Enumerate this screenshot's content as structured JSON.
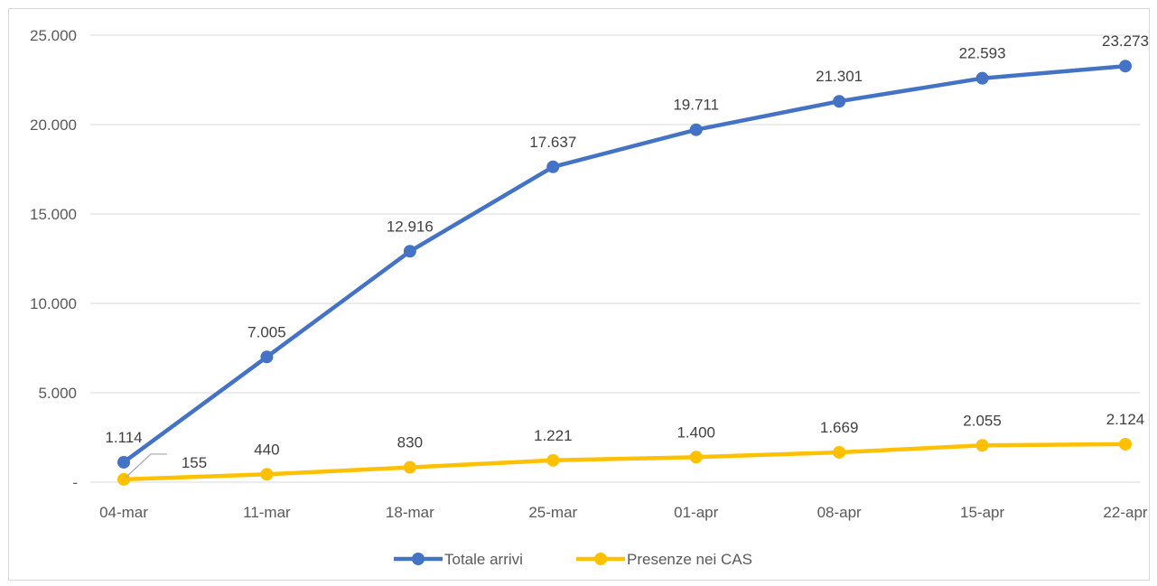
{
  "chart_data": {
    "type": "line",
    "categories": [
      "04-mar",
      "11-mar",
      "18-mar",
      "25-mar",
      "01-apr",
      "08-apr",
      "15-apr",
      "22-apr"
    ],
    "series": [
      {
        "name": "Totale arrivi",
        "color": "#4472C4",
        "values": [
          1114,
          7005,
          12916,
          17637,
          19711,
          21301,
          22593,
          23273
        ],
        "labels": [
          "1.114",
          "7.005",
          "12.916",
          "17.637",
          "19.711",
          "21.301",
          "22.593",
          "23.273"
        ]
      },
      {
        "name": "Presenze nei CAS",
        "color": "#FFC000",
        "values": [
          155,
          440,
          830,
          1221,
          1400,
          1669,
          2055,
          2124
        ],
        "labels": [
          "155",
          "440",
          "830",
          "1.221",
          "1.400",
          "1.669",
          "2.055",
          "2.124"
        ]
      }
    ],
    "ylim": [
      0,
      25000
    ],
    "yticks": [
      {
        "value": 0,
        "label": "-"
      },
      {
        "value": 5000,
        "label": "5.000"
      },
      {
        "value": 10000,
        "label": "10.000"
      },
      {
        "value": 15000,
        "label": "15.000"
      },
      {
        "value": 20000,
        "label": "20.000"
      },
      {
        "value": 25000,
        "label": "25.000"
      }
    ],
    "grid": true,
    "legend": "bottom"
  }
}
